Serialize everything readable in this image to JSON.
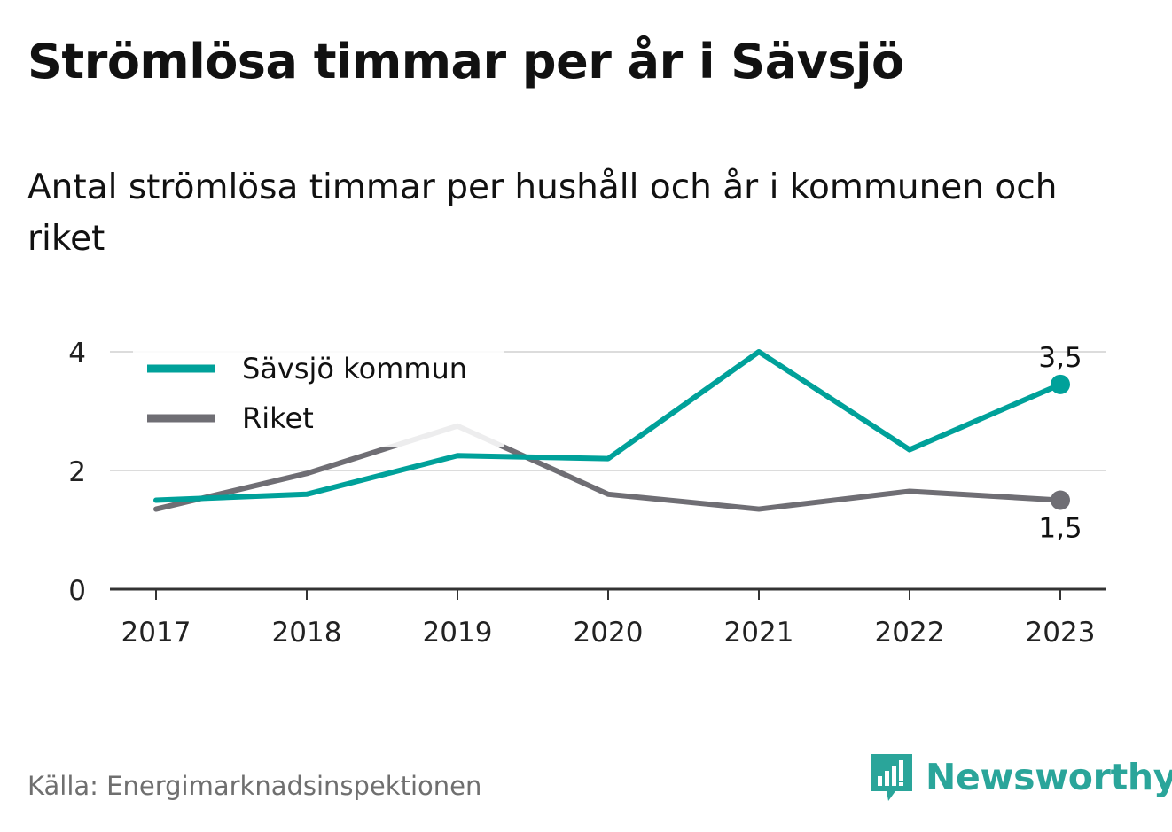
{
  "title": "Strömlösa timmar per år i Sävsjö",
  "subtitle": "Antal strömlösa timmar per hushåll och år i kommunen och riket",
  "source": "Källa: Energimarknadsinspektionen",
  "brand": {
    "name": "Newsworthy",
    "icon": "newsworthy-logo-icon",
    "color": "#2aa59a"
  },
  "chart_data": {
    "type": "line",
    "x": [
      "2017",
      "2018",
      "2019",
      "2020",
      "2021",
      "2022",
      "2023"
    ],
    "ylim": [
      0,
      4
    ],
    "yticks": [
      "0",
      "2",
      "4"
    ],
    "grid": true,
    "legend_position": "top-left",
    "series": [
      {
        "name": "Sävsjö kommun",
        "color": "#00a19a",
        "values": [
          1.5,
          1.6,
          2.25,
          2.2,
          4.0,
          2.35,
          3.45
        ],
        "end_label": "3,5"
      },
      {
        "name": "Riket",
        "color": "#6f6e74",
        "values": [
          1.35,
          1.95,
          2.75,
          1.6,
          1.35,
          1.65,
          1.5
        ],
        "end_label": "1,5"
      }
    ]
  }
}
